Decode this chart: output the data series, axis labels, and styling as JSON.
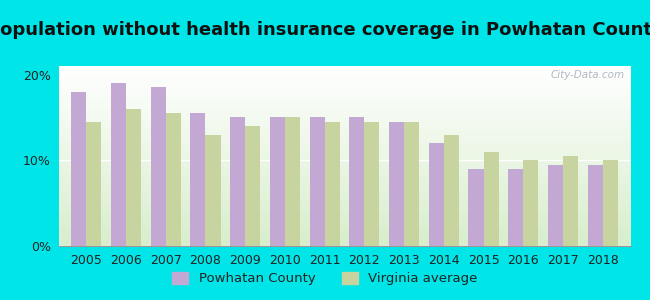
{
  "title": "Population without health insurance coverage in Powhatan County",
  "years": [
    2005,
    2006,
    2007,
    2008,
    2009,
    2010,
    2011,
    2012,
    2013,
    2014,
    2015,
    2016,
    2017,
    2018
  ],
  "powhatan": [
    18.0,
    19.0,
    18.5,
    15.5,
    15.0,
    15.0,
    15.0,
    15.0,
    14.5,
    12.0,
    9.0,
    9.0,
    9.5,
    9.5
  ],
  "virginia": [
    14.5,
    16.0,
    15.5,
    13.0,
    14.0,
    15.0,
    14.5,
    14.5,
    14.5,
    13.0,
    11.0,
    10.0,
    10.5,
    10.0
  ],
  "powhatan_color": "#c4a8d4",
  "virginia_color": "#c8d4a0",
  "background_outer": "#00e5e8",
  "background_plot_bottom": "#d8eecc",
  "background_plot_top": "#ffffff",
  "ylim": [
    0,
    21
  ],
  "yticks": [
    0,
    10,
    20
  ],
  "ytick_labels": [
    "0%",
    "10%",
    "20%"
  ],
  "legend_powhatan": "Powhatan County",
  "legend_virginia": "Virginia average",
  "bar_width": 0.38,
  "title_fontsize": 13.0,
  "tick_fontsize": 9.0,
  "legend_fontsize": 9.5
}
